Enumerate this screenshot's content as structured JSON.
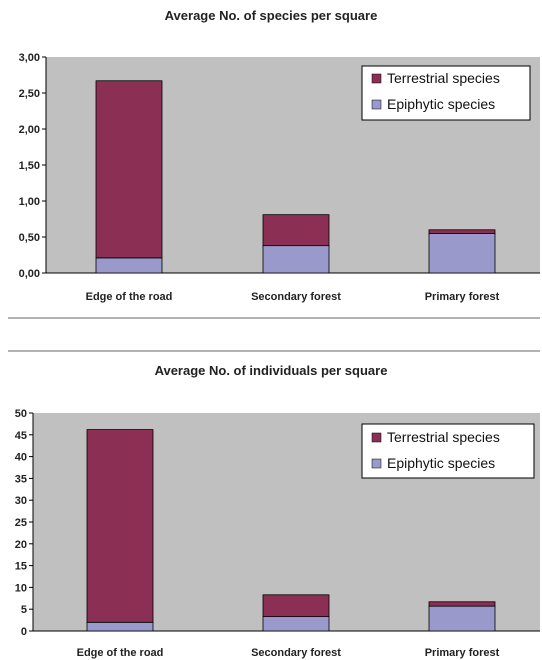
{
  "colors": {
    "terrestrial": "#8c2f55",
    "epiphytic": "#9999cc",
    "plot_bg": "#c0c0c0",
    "axis": "#000000",
    "separator": "#666666"
  },
  "chart_data": [
    {
      "type": "bar",
      "stacked": true,
      "title": "Average No. of species per square",
      "categories": [
        "Edge of the road",
        "Secondary forest",
        "Primary forest"
      ],
      "series": [
        {
          "name": "Epiphytic species",
          "values": [
            0.21,
            0.38,
            0.55
          ]
        },
        {
          "name": "Terrestrial species",
          "values": [
            2.46,
            0.43,
            0.05
          ]
        }
      ],
      "ylim": [
        0,
        3
      ],
      "yticks": [
        "0,00",
        "0,50",
        "1,00",
        "1,50",
        "2,00",
        "2,50",
        "3,00"
      ],
      "ytick_values": [
        0,
        0.5,
        1,
        1.5,
        2,
        2.5,
        3
      ],
      "legend": {
        "position": "top-right",
        "entries": [
          "Terrestrial species",
          "Epiphytic species"
        ]
      },
      "grid": false
    },
    {
      "type": "bar",
      "stacked": true,
      "title": "Average No. of individuals per square",
      "categories": [
        "Edge of the road",
        "Secondary forest",
        "Primary forest"
      ],
      "series": [
        {
          "name": "Epiphytic species",
          "values": [
            2.0,
            3.3,
            5.7
          ]
        },
        {
          "name": "Terrestrial species",
          "values": [
            44.2,
            5.0,
            1.0
          ]
        }
      ],
      "ylim": [
        0,
        50
      ],
      "yticks": [
        "0",
        "5",
        "10",
        "15",
        "20",
        "25",
        "30",
        "35",
        "40",
        "45",
        "50"
      ],
      "ytick_values": [
        0,
        5,
        10,
        15,
        20,
        25,
        30,
        35,
        40,
        45,
        50
      ],
      "legend": {
        "position": "top-right",
        "entries": [
          "Terrestrial species",
          "Epiphytic species"
        ]
      },
      "grid": false
    }
  ]
}
